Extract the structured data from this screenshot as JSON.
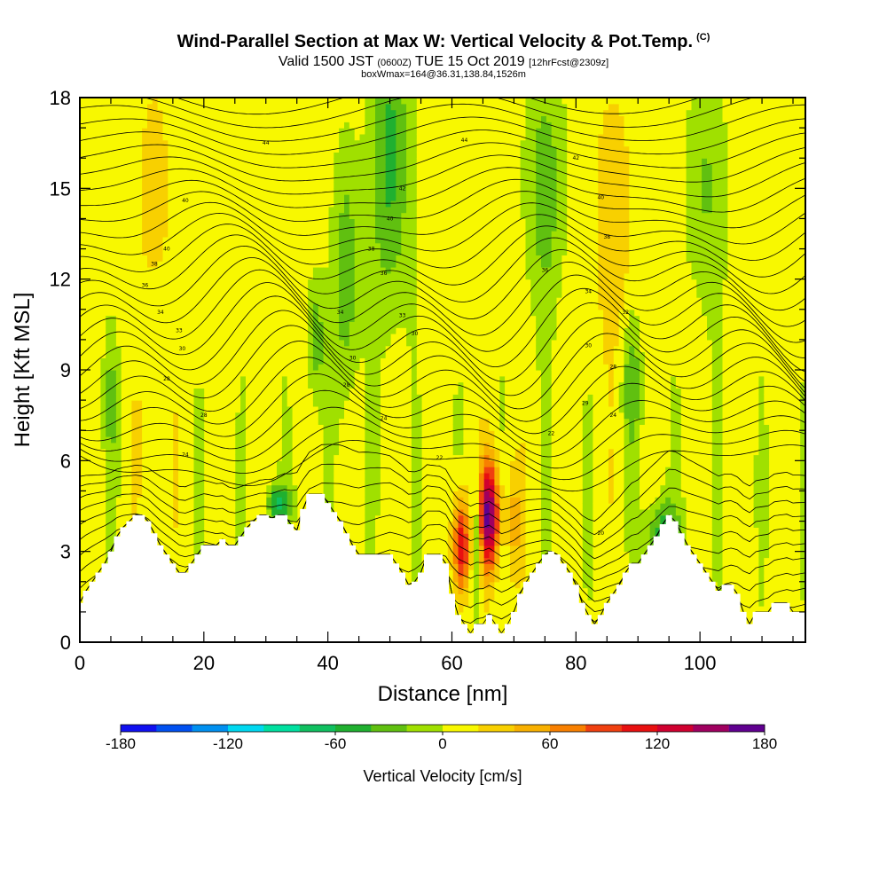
{
  "header": {
    "title": "Wind-Parallel Section at Max W: Vertical Velocity & Pot.Temp.",
    "title_mark": "(C)",
    "valid_prefix": "Valid 1500 JST",
    "valid_utc": "(0600Z)",
    "valid_date": "TUE 15 Oct 2019",
    "forecast": "[12hrFcst@2309z]",
    "box_info": "boxWmax=164@36.31,138.84,1526m"
  },
  "chart_data": {
    "type": "heatmap",
    "xlabel": "Distance [nm]",
    "ylabel": "Height [Kft MSL]",
    "xlim": [
      0,
      117
    ],
    "ylim": [
      0,
      18
    ],
    "x_ticks": [
      0,
      20,
      40,
      60,
      80,
      100
    ],
    "y_ticks": [
      0,
      3,
      6,
      9,
      12,
      15,
      18
    ],
    "colorbar": {
      "label": "Vertical Velocity [cm/s]",
      "ticks": [
        -180,
        -120,
        -60,
        0,
        60,
        120,
        180
      ],
      "range": [
        -180,
        180
      ],
      "step": 20,
      "colors": [
        "#1010f0",
        "#0050f0",
        "#0090f0",
        "#00d8f0",
        "#00e0a0",
        "#10c060",
        "#20b030",
        "#60c010",
        "#a0e000",
        "#f8f800",
        "#f8d000",
        "#f8b000",
        "#f88000",
        "#f04010",
        "#e81010",
        "#d00030",
        "#a00060",
        "#600090"
      ]
    },
    "max_w": 164,
    "max_w_location": "36.31,138.84",
    "max_w_height": "1526m",
    "terrain": {
      "distance": [
        0,
        1,
        2,
        3,
        4,
        5,
        6,
        7,
        8,
        9,
        10,
        11,
        12,
        13,
        14,
        15,
        16,
        17,
        18,
        19,
        20,
        21,
        22,
        23,
        24,
        25,
        26,
        27,
        28,
        29,
        30,
        31,
        32,
        33,
        34,
        35,
        36,
        37,
        38,
        39,
        40,
        41,
        42,
        43,
        44,
        45,
        46,
        47,
        48,
        49,
        50,
        51,
        52,
        53,
        54,
        55,
        56,
        57,
        58,
        59,
        60,
        61,
        62,
        63,
        64,
        65,
        66,
        67,
        68,
        69,
        70,
        71,
        72,
        73,
        74,
        75,
        76,
        77,
        78,
        79,
        80,
        81,
        82,
        83,
        84,
        85,
        86,
        87,
        88,
        89,
        90,
        91,
        92,
        93,
        94,
        95,
        96,
        97,
        98,
        99,
        100,
        101,
        102,
        103,
        104,
        105,
        106,
        107,
        108,
        109,
        110,
        111,
        112,
        113,
        114,
        115,
        116,
        117
      ],
      "height_kft": [
        1.3,
        1.7,
        2.0,
        2.3,
        2.6,
        3.0,
        3.5,
        3.8,
        4.0,
        4.2,
        4.2,
        4.0,
        3.6,
        3.2,
        2.9,
        2.6,
        2.3,
        2.3,
        2.6,
        2.9,
        3.2,
        3.2,
        3.2,
        3.4,
        3.2,
        3.2,
        3.5,
        3.8,
        4.0,
        4.2,
        4.2,
        4.1,
        4.2,
        4.2,
        3.9,
        3.7,
        4.4,
        4.9,
        4.9,
        4.9,
        4.6,
        4.3,
        4.0,
        3.6,
        3.2,
        2.9,
        2.9,
        2.9,
        2.9,
        2.9,
        2.9,
        2.6,
        2.3,
        1.9,
        2.0,
        2.3,
        2.9,
        2.9,
        2.9,
        2.6,
        1.6,
        0.9,
        0.6,
        0.3,
        0.6,
        0.6,
        0.9,
        0.6,
        0.3,
        0.6,
        1.0,
        1.6,
        2.0,
        2.3,
        2.6,
        2.9,
        3.0,
        2.9,
        2.6,
        2.3,
        1.9,
        1.3,
        0.9,
        0.6,
        0.9,
        1.3,
        1.6,
        1.9,
        2.3,
        2.6,
        2.6,
        2.9,
        3.2,
        3.5,
        3.9,
        4.2,
        4.0,
        3.6,
        3.2,
        2.9,
        2.6,
        2.3,
        2.0,
        1.7,
        1.9,
        1.9,
        1.6,
        1.0,
        0.6,
        1.0,
        1.0,
        1.0,
        1.3,
        1.3,
        1.3,
        1.0,
        1.0,
        1.0
      ]
    },
    "updraft_max": {
      "distance": 66,
      "height_kft": 4.2,
      "value": 164
    },
    "contour_labels": [
      {
        "text": "44",
        "x": 30,
        "y": 16.5
      },
      {
        "text": "44",
        "x": 62,
        "y": 16.6
      },
      {
        "text": "42",
        "x": 80,
        "y": 16.0
      },
      {
        "text": "42",
        "x": 52,
        "y": 15.0
      },
      {
        "text": "40",
        "x": 84,
        "y": 14.7
      },
      {
        "text": "40",
        "x": 17,
        "y": 14.6
      },
      {
        "text": "40",
        "x": 50,
        "y": 14.0
      },
      {
        "text": "38",
        "x": 85,
        "y": 13.4
      },
      {
        "text": "40",
        "x": 14,
        "y": 13.0
      },
      {
        "text": "38",
        "x": 47,
        "y": 13.0
      },
      {
        "text": "38",
        "x": 12,
        "y": 12.5
      },
      {
        "text": "36",
        "x": 75,
        "y": 12.3
      },
      {
        "text": "36",
        "x": 49,
        "y": 12.2
      },
      {
        "text": "36",
        "x": 10.5,
        "y": 11.8
      },
      {
        "text": "34",
        "x": 82,
        "y": 11.6
      },
      {
        "text": "34",
        "x": 42,
        "y": 10.9
      },
      {
        "text": "34",
        "x": 13,
        "y": 10.9
      },
      {
        "text": "33",
        "x": 52,
        "y": 10.8
      },
      {
        "text": "32",
        "x": 88,
        "y": 10.9
      },
      {
        "text": "33",
        "x": 16,
        "y": 10.3
      },
      {
        "text": "30",
        "x": 54,
        "y": 10.2
      },
      {
        "text": "30",
        "x": 16.5,
        "y": 9.7
      },
      {
        "text": "30",
        "x": 82,
        "y": 9.8
      },
      {
        "text": "30",
        "x": 44,
        "y": 9.4
      },
      {
        "text": "28",
        "x": 86,
        "y": 9.1
      },
      {
        "text": "28",
        "x": 14,
        "y": 8.7
      },
      {
        "text": "28",
        "x": 43,
        "y": 8.5
      },
      {
        "text": "29",
        "x": 81.5,
        "y": 7.9
      },
      {
        "text": "28",
        "x": 20,
        "y": 7.5
      },
      {
        "text": "24",
        "x": 86,
        "y": 7.5
      },
      {
        "text": "24",
        "x": 49,
        "y": 7.4
      },
      {
        "text": "22",
        "x": 76,
        "y": 6.9
      },
      {
        "text": "24",
        "x": 17,
        "y": 6.2
      },
      {
        "text": "22",
        "x": 58,
        "y": 6.1
      },
      {
        "text": "20",
        "x": 84,
        "y": 3.6
      }
    ]
  }
}
